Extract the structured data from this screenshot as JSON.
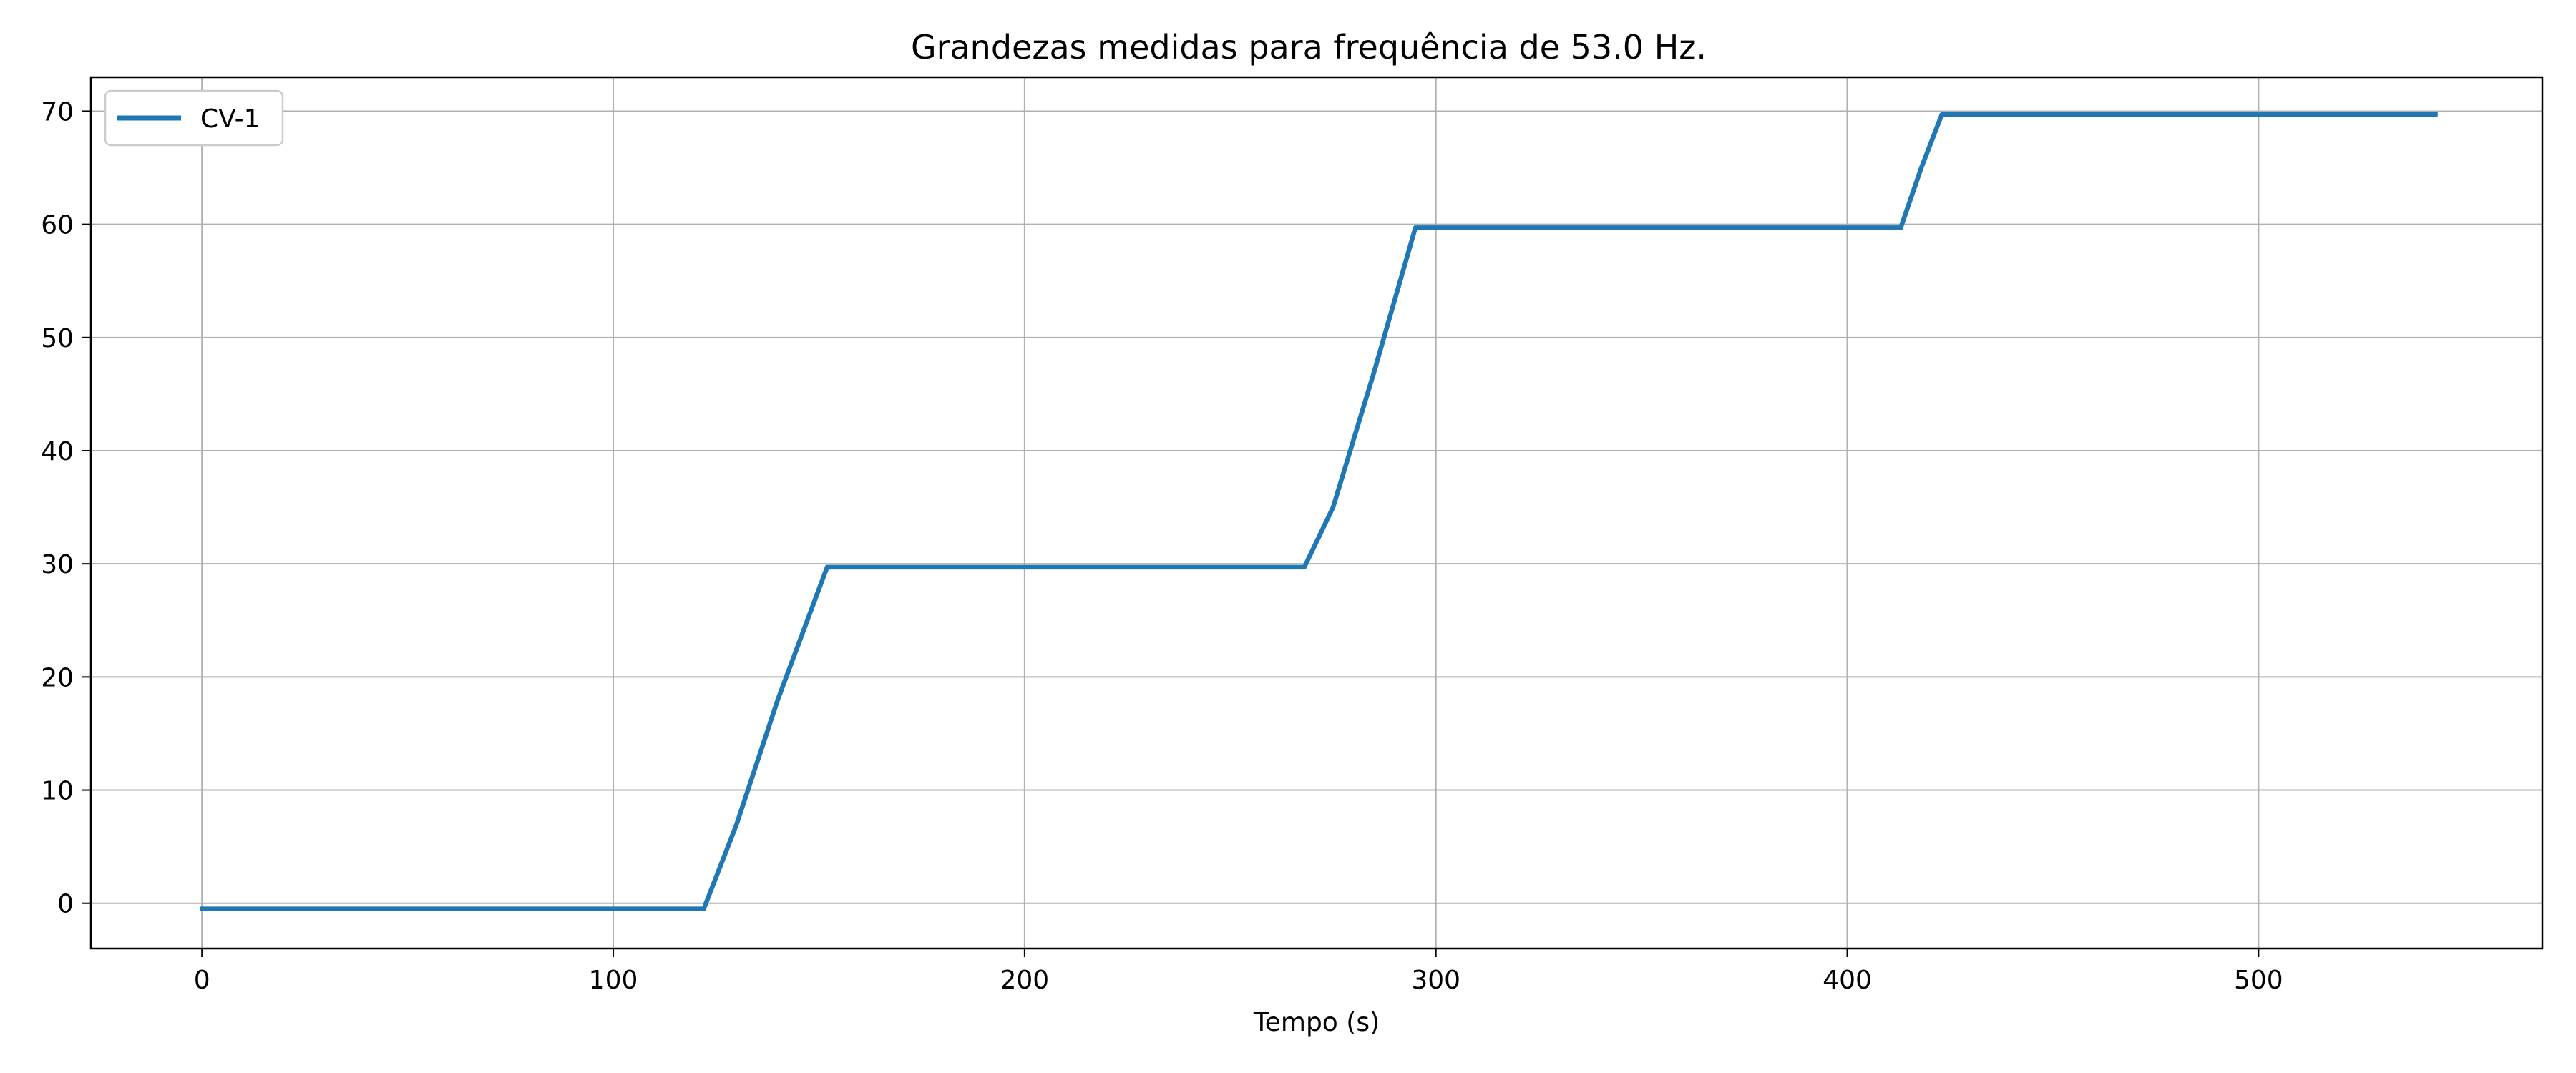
{
  "chart_data": {
    "type": "line",
    "title": "Grandezas medidas para frequência de 53.0 Hz.",
    "xlabel": "Tempo (s)",
    "ylabel": "",
    "xlim": [
      -27,
      569
    ],
    "ylim": [
      -4,
      73
    ],
    "xticks": [
      0,
      100,
      200,
      300,
      400,
      500
    ],
    "yticks": [
      0,
      10,
      20,
      30,
      40,
      50,
      60,
      70
    ],
    "grid": true,
    "legend_position": "top-left",
    "series": [
      {
        "name": "CV-1",
        "color": "#1f77b4",
        "points": [
          [
            0,
            -0.5
          ],
          [
            60,
            -0.5
          ],
          [
            122,
            -0.5
          ],
          [
            130,
            7
          ],
          [
            140,
            18
          ],
          [
            152,
            29.7
          ],
          [
            200,
            29.7
          ],
          [
            268,
            29.7
          ],
          [
            275,
            35
          ],
          [
            285,
            47
          ],
          [
            295,
            59.7
          ],
          [
            350,
            59.7
          ],
          [
            413,
            59.7
          ],
          [
            418,
            65
          ],
          [
            423,
            69.7
          ],
          [
            480,
            69.7
          ],
          [
            543,
            69.7
          ]
        ]
      }
    ]
  }
}
